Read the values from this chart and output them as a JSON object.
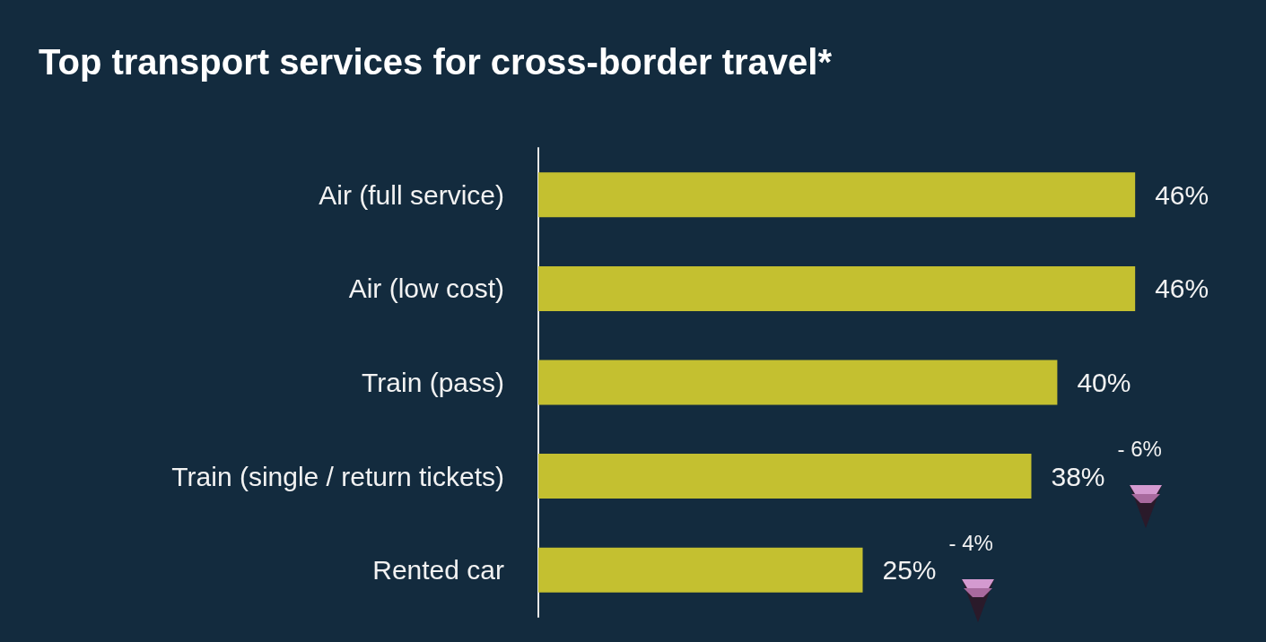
{
  "chart_data": {
    "type": "bar",
    "orientation": "horizontal",
    "title": "Top transport services for cross-border travel*",
    "categories": [
      "Air (full service)",
      "Air (low cost)",
      "Train (pass)",
      "Train (single / return tickets)",
      "Rented car"
    ],
    "values": [
      46,
      46,
      40,
      38,
      25
    ],
    "color": "#c4c030",
    "value_labels": [
      "46%",
      "46%",
      "40%",
      "38%",
      "25%"
    ],
    "annotations": [
      "- 6%",
      "- 4%"
    ]
  }
}
